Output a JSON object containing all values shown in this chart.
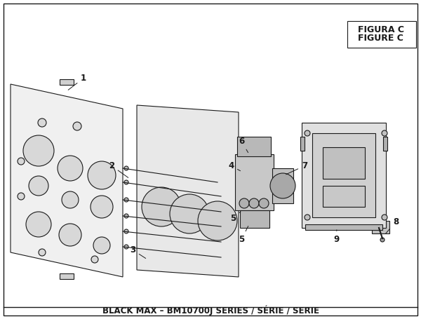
{
  "title": "BLACK MAX – BM10700J SERIES / SÉRIE / SERIE",
  "figure_label": "FIGURE C",
  "figura_label": "FIGURA C",
  "bg_color": "#ffffff",
  "border_color": "#000000",
  "line_color": "#1a1a1a",
  "part_labels": [
    "1",
    "2",
    "3",
    "4",
    "5",
    "5",
    "6",
    "7",
    "8",
    "9"
  ],
  "title_fontsize": 8.5,
  "label_fontsize": 8.5
}
